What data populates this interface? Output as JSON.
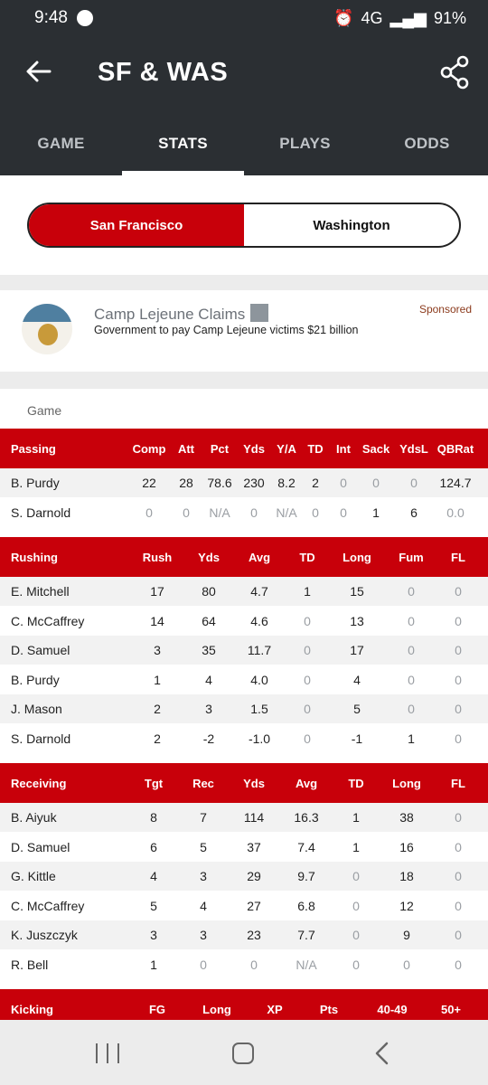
{
  "status_bar": {
    "time": "9:48",
    "network": "4G",
    "battery": "91%"
  },
  "header": {
    "title": "SF & WAS"
  },
  "tabs": [
    "GAME",
    "STATS",
    "PLAYS",
    "ODDS"
  ],
  "active_tab": "STATS",
  "team_toggle": {
    "home": "San Francisco",
    "away": "Washington",
    "selected": "San Francisco"
  },
  "ad": {
    "title": "Camp Lejeune Claims",
    "description": "Government to pay Camp Lejeune victims $21 billion",
    "sponsored": "Sponsored"
  },
  "section_label": "Game",
  "passing": {
    "headers": [
      "Passing",
      "Comp",
      "Att",
      "Pct",
      "Yds",
      "Y/A",
      "TD",
      "Int",
      "Sack",
      "YdsL",
      "QBRat"
    ],
    "rows": [
      [
        "B. Purdy",
        "22",
        "28",
        "78.6",
        "230",
        "8.2",
        "2",
        "0",
        "0",
        "0",
        "124.7"
      ],
      [
        "S. Darnold",
        "0",
        "0",
        "N/A",
        "0",
        "N/A",
        "0",
        "0",
        "1",
        "6",
        "0.0"
      ]
    ]
  },
  "rushing": {
    "headers": [
      "Rushing",
      "Rush",
      "Yds",
      "Avg",
      "TD",
      "Long",
      "Fum",
      "FL"
    ],
    "rows": [
      [
        "E. Mitchell",
        "17",
        "80",
        "4.7",
        "1",
        "15",
        "0",
        "0"
      ],
      [
        "C. McCaffrey",
        "14",
        "64",
        "4.6",
        "0",
        "13",
        "0",
        "0"
      ],
      [
        "D. Samuel",
        "3",
        "35",
        "11.7",
        "0",
        "17",
        "0",
        "0"
      ],
      [
        "B. Purdy",
        "1",
        "4",
        "4.0",
        "0",
        "4",
        "0",
        "0"
      ],
      [
        "J. Mason",
        "2",
        "3",
        "1.5",
        "0",
        "5",
        "0",
        "0"
      ],
      [
        "S. Darnold",
        "2",
        "-2",
        "-1.0",
        "0",
        "-1",
        "1",
        "0"
      ]
    ]
  },
  "receiving": {
    "headers": [
      "Receiving",
      "Tgt",
      "Rec",
      "Yds",
      "Avg",
      "TD",
      "Long",
      "FL"
    ],
    "rows": [
      [
        "B. Aiyuk",
        "8",
        "7",
        "114",
        "16.3",
        "1",
        "38",
        "0"
      ],
      [
        "D. Samuel",
        "6",
        "5",
        "37",
        "7.4",
        "1",
        "16",
        "0"
      ],
      [
        "G. Kittle",
        "4",
        "3",
        "29",
        "9.7",
        "0",
        "18",
        "0"
      ],
      [
        "C. McCaffrey",
        "5",
        "4",
        "27",
        "6.8",
        "0",
        "12",
        "0"
      ],
      [
        "K. Juszczyk",
        "3",
        "3",
        "23",
        "7.7",
        "0",
        "9",
        "0"
      ],
      [
        "R. Bell",
        "1",
        "0",
        "0",
        "N/A",
        "0",
        "0",
        "0"
      ]
    ]
  },
  "kicking": {
    "headers": [
      "Kicking",
      "FG",
      "Long",
      "XP",
      "Pts",
      "40-49",
      "50+"
    ]
  },
  "colors": {
    "header_bg": "#2b2f33",
    "accent_red": "#c8000a",
    "muted_zero": "#9a9ea3"
  }
}
